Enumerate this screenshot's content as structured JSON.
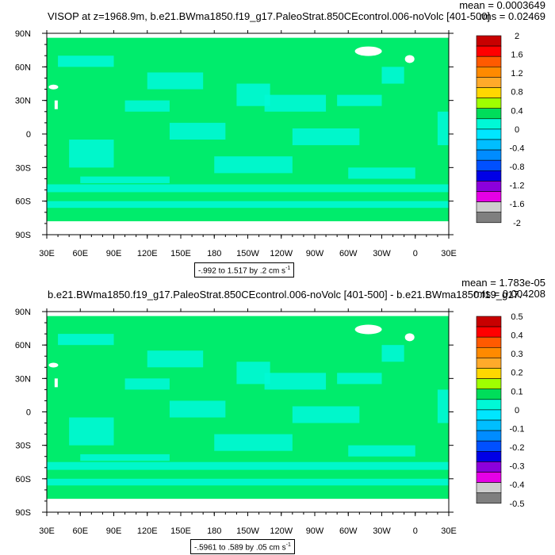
{
  "colors": {
    "ocean": "#00ec6c",
    "cool": "#00f8d6",
    "land": "#ffffff",
    "frame": "#000000"
  },
  "chart_data": [
    {
      "type": "heatmap",
      "title": "VISOP at z=1968.9m, b.e21.BWma1850.f19_g17.PaleoStrat.850CEcontrol.006-noVolc [401-500]",
      "stats": {
        "mean": "mean = 0.0003649",
        "rms": "rms = 0.02469"
      },
      "xticks": [
        "30E",
        "60E",
        "90E",
        "120E",
        "150E",
        "180",
        "150W",
        "120W",
        "90W",
        "60W",
        "30W",
        "0",
        "30E"
      ],
      "yticks": [
        "90N",
        "60N",
        "30N",
        "0",
        "30S",
        "60S",
        "90S"
      ],
      "range_label": "-.992 to 1.517 by .2 cm s",
      "range_sup": "-1",
      "colorbar_labels": [
        "2",
        "1.6",
        "1.2",
        "0.8",
        "0.4",
        "0",
        "-0.4",
        "-0.8",
        "-1.2",
        "-1.6",
        "-2"
      ],
      "colorbar_colors": [
        "#c80000",
        "#ff0000",
        "#ff5a00",
        "#ff8a00",
        "#ffaa2a",
        "#ffd700",
        "#a0ff00",
        "#00dd5a",
        "#00f8d6",
        "#00e6ff",
        "#00beff",
        "#008cff",
        "#0050ff",
        "#0000e6",
        "#8c00dc",
        "#e600e6",
        "#cdcdcd",
        "#7f7f7f"
      ]
    },
    {
      "type": "heatmap",
      "title": "b.e21.BWma1850.f19_g17.PaleoStrat.850CEcontrol.006-noVolc [401-500] - b.e21.BWma1850.f19_g17.",
      "stats": {
        "mean": "mean = 1.783e-05",
        "rms": "rms = 0.004208"
      },
      "xticks": [
        "30E",
        "60E",
        "90E",
        "120E",
        "150E",
        "180",
        "150W",
        "120W",
        "90W",
        "60W",
        "30W",
        "0",
        "30E"
      ],
      "yticks": [
        "90N",
        "60N",
        "30N",
        "0",
        "30S",
        "60S",
        "90S"
      ],
      "range_label": "-.5961 to .589 by .05 cm s",
      "range_sup": "-1",
      "colorbar_labels": [
        "0.5",
        "0.4",
        "0.3",
        "0.2",
        "0.1",
        "0",
        "-0.1",
        "-0.2",
        "-0.3",
        "-0.4",
        "-0.5"
      ],
      "colorbar_colors": [
        "#c80000",
        "#ff0000",
        "#ff5a00",
        "#ff8a00",
        "#ffaa2a",
        "#ffd700",
        "#a0ff00",
        "#00dd5a",
        "#00f8d6",
        "#00e6ff",
        "#00beff",
        "#008cff",
        "#0050ff",
        "#0000e6",
        "#8c00dc",
        "#e600e6",
        "#cdcdcd",
        "#7f7f7f"
      ]
    }
  ]
}
